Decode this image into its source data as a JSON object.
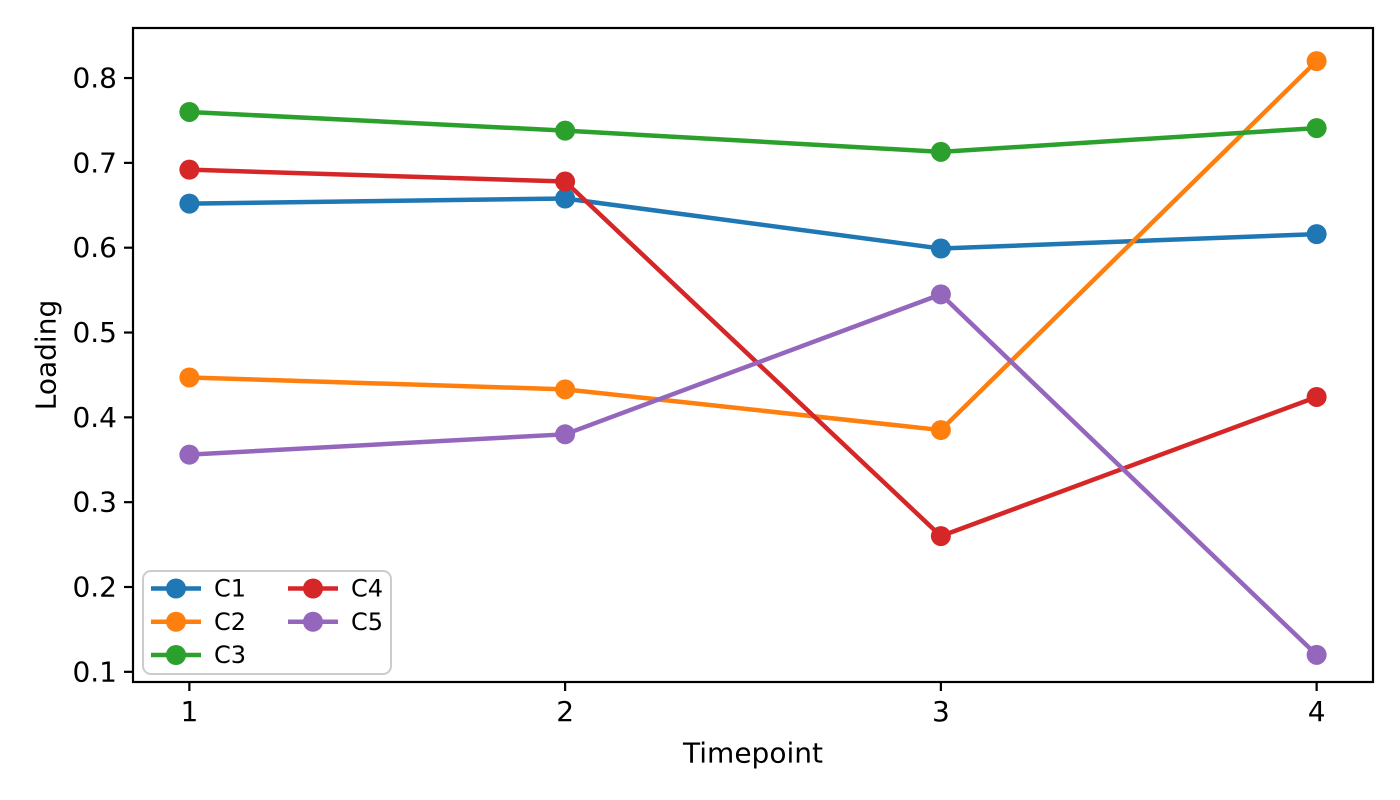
{
  "chart_data": {
    "type": "line",
    "title": "",
    "xlabel": "Timepoint",
    "ylabel": "Loading",
    "x": [
      1,
      2,
      3,
      4
    ],
    "xlim": [
      0.85,
      4.15
    ],
    "ylim": [
      0.088,
      0.859
    ],
    "xticks": [
      1,
      2,
      3,
      4
    ],
    "xtick_labels": [
      "1",
      "2",
      "3",
      "4"
    ],
    "yticks": [
      0.1,
      0.2,
      0.3,
      0.4,
      0.5,
      0.6,
      0.7,
      0.8
    ],
    "ytick_labels": [
      "0.1",
      "0.2",
      "0.3",
      "0.4",
      "0.5",
      "0.6",
      "0.7",
      "0.8"
    ],
    "grid": false,
    "marker": "circle",
    "legend": {
      "position": "lower-left",
      "ncol": 2,
      "border_color": "#cccccc",
      "bg_color": "#ffffff"
    },
    "axis_color": "#000000",
    "series": [
      {
        "name": "C1",
        "color": "#1f77b4",
        "values": [
          0.652,
          0.658,
          0.599,
          0.616
        ]
      },
      {
        "name": "C2",
        "color": "#ff7f0e",
        "values": [
          0.447,
          0.433,
          0.385,
          0.82
        ]
      },
      {
        "name": "C3",
        "color": "#2ca02c",
        "values": [
          0.76,
          0.738,
          0.713,
          0.741
        ]
      },
      {
        "name": "C4",
        "color": "#d62728",
        "values": [
          0.692,
          0.678,
          0.26,
          0.424
        ]
      },
      {
        "name": "C5",
        "color": "#9467bd",
        "values": [
          0.356,
          0.38,
          0.545,
          0.12
        ]
      }
    ]
  }
}
